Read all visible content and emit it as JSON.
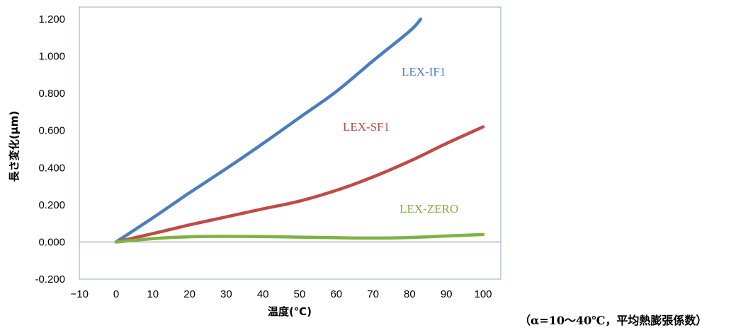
{
  "chart_data": {
    "type": "line",
    "xlabel": "温度(℃)",
    "ylabel": "長さ変化(μm)",
    "xlim": [
      -10,
      100
    ],
    "ylim": [
      -0.2,
      1.2
    ],
    "x_ticks": [
      "−10",
      "0",
      "10",
      "20",
      "30",
      "40",
      "50",
      "60",
      "70",
      "80",
      "90",
      "100"
    ],
    "y_ticks": [
      "-0.200",
      "0.000",
      "0.200",
      "0.400",
      "0.600",
      "0.800",
      "1.000",
      "1.200"
    ],
    "grid": false,
    "series": [
      {
        "name": "LEX-IF1",
        "color": "#4a7ebb",
        "x": [
          0,
          10,
          20,
          30,
          40,
          50,
          60,
          70,
          80,
          83
        ],
        "y": [
          0.0,
          0.13,
          0.265,
          0.395,
          0.53,
          0.67,
          0.81,
          0.975,
          1.135,
          1.2
        ]
      },
      {
        "name": "LEX-SF1",
        "color": "#be4b48",
        "x": [
          0,
          10,
          20,
          30,
          40,
          50,
          60,
          70,
          80,
          90,
          100
        ],
        "y": [
          0.0,
          0.045,
          0.092,
          0.135,
          0.178,
          0.22,
          0.278,
          0.35,
          0.435,
          0.53,
          0.62
        ]
      },
      {
        "name": "LEX-ZERO",
        "color": "#7fb241",
        "x": [
          0,
          10,
          20,
          30,
          40,
          50,
          60,
          70,
          80,
          90,
          100
        ],
        "y": [
          0.0,
          0.018,
          0.028,
          0.03,
          0.029,
          0.026,
          0.023,
          0.021,
          0.024,
          0.032,
          0.04
        ]
      }
    ]
  },
  "footnote": "（α=10～40℃，平均熱膨張係数）"
}
